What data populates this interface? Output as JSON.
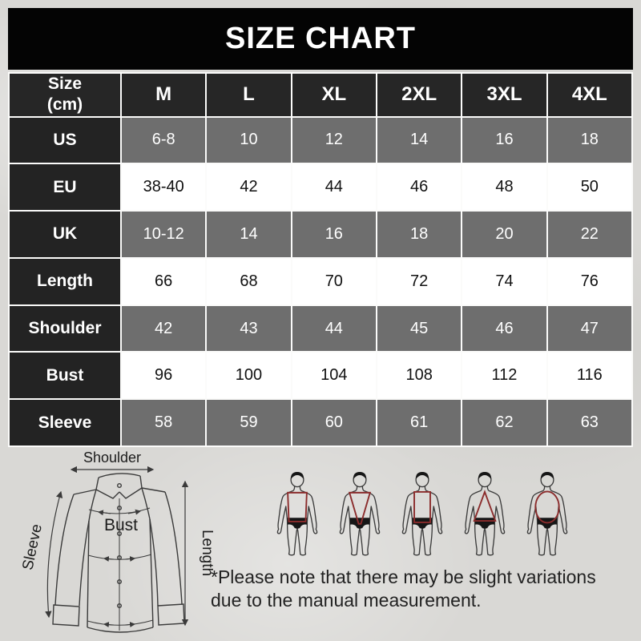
{
  "title": "SIZE CHART",
  "table": {
    "corner": {
      "line1": "Size",
      "line2": "(cm)"
    },
    "columns": [
      "M",
      "L",
      "XL",
      "2XL",
      "3XL",
      "4XL"
    ],
    "rows": [
      {
        "label": "US",
        "values": [
          "6-8",
          "10",
          "12",
          "14",
          "16",
          "18"
        ]
      },
      {
        "label": "EU",
        "values": [
          "38-40",
          "42",
          "44",
          "46",
          "48",
          "50"
        ]
      },
      {
        "label": "UK",
        "values": [
          "10-12",
          "14",
          "16",
          "18",
          "20",
          "22"
        ]
      },
      {
        "label": "Length",
        "values": [
          "66",
          "68",
          "70",
          "72",
          "74",
          "76"
        ]
      },
      {
        "label": "Shoulder",
        "values": [
          "42",
          "43",
          "44",
          "45",
          "46",
          "47"
        ]
      },
      {
        "label": "Bust",
        "values": [
          "96",
          "100",
          "104",
          "108",
          "112",
          "116"
        ]
      },
      {
        "label": "Sleeve",
        "values": [
          "58",
          "59",
          "60",
          "61",
          "62",
          "63"
        ]
      }
    ]
  },
  "diagram": {
    "labels": {
      "shoulder": "Shoulder",
      "bust": "Bust",
      "sleeve": "Sleeve",
      "length": "Length"
    }
  },
  "figures": [
    {
      "shape": "torso-rectangle"
    },
    {
      "shape": "torso-v-shape"
    },
    {
      "shape": "torso-narrow-rectangle"
    },
    {
      "shape": "torso-triangle"
    },
    {
      "shape": "torso-oval"
    }
  ],
  "note": {
    "line1": "*Please note that there may be slight variations",
    "line2": "due to the manual measurement."
  },
  "colors": {
    "title_bar": "#040404",
    "header_cell": "#262626",
    "row_label_cell": "#232323",
    "shaded_cell": "#6e6e6e",
    "white_cell": "#ffffff",
    "cell_border": "#fbfbfa",
    "background": "#d9d8d5",
    "measure_accent_red": "#8b2c2c",
    "line_gray": "#3a3a3a"
  }
}
